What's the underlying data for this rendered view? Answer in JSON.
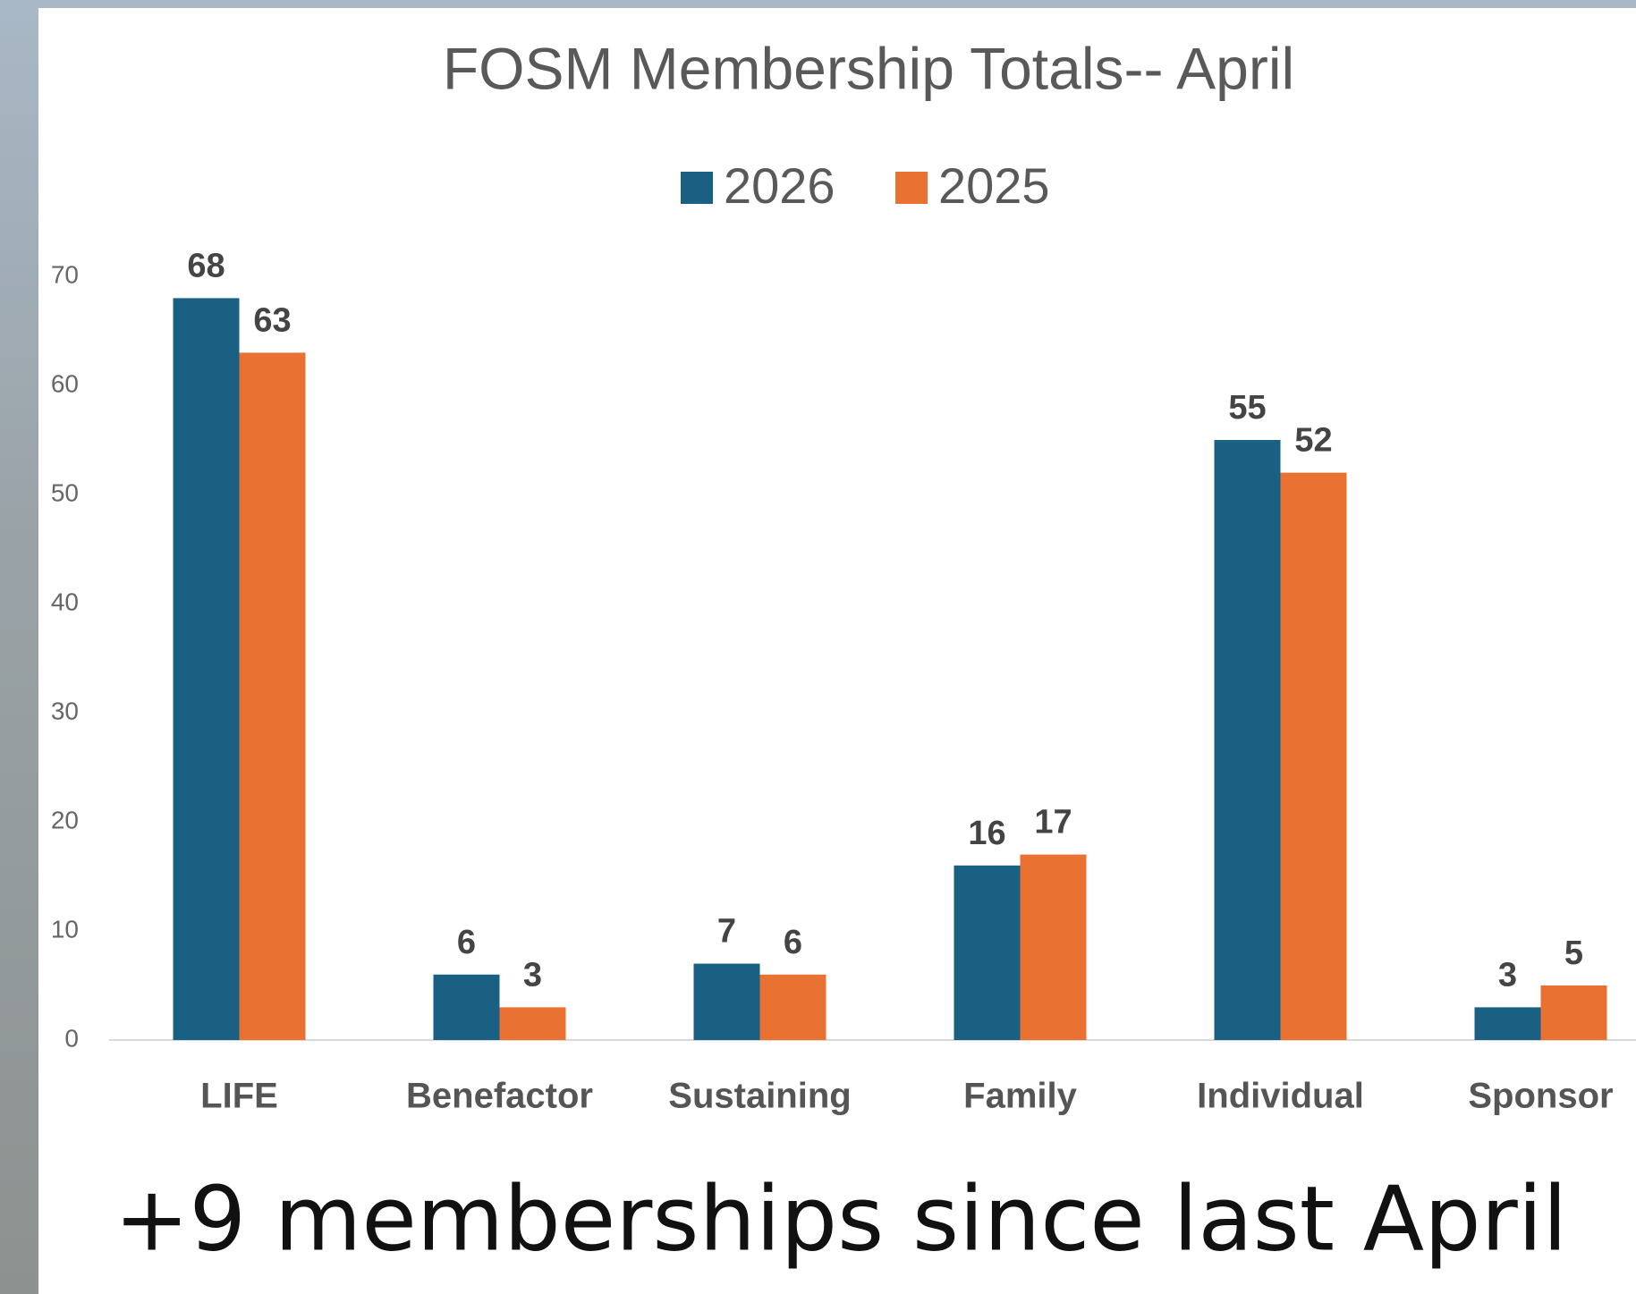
{
  "chart_data": {
    "type": "bar",
    "title": "FOSM Membership Totals-- April",
    "categories": [
      "LIFE",
      "Benefactor",
      "Sustaining",
      "Family",
      "Individual",
      "Sponsor"
    ],
    "series": [
      {
        "name": "2026",
        "color": "#1a6083",
        "values": [
          68,
          6,
          7,
          16,
          55,
          3
        ]
      },
      {
        "name": "2025",
        "color": "#e97132",
        "values": [
          63,
          3,
          6,
          17,
          52,
          5
        ]
      }
    ],
    "ylim": [
      0,
      70
    ],
    "yticks": [
      0,
      10,
      20,
      30,
      40,
      50,
      60,
      70
    ],
    "grid": false,
    "legend": "top",
    "caption": "+9 memberships since last April"
  }
}
